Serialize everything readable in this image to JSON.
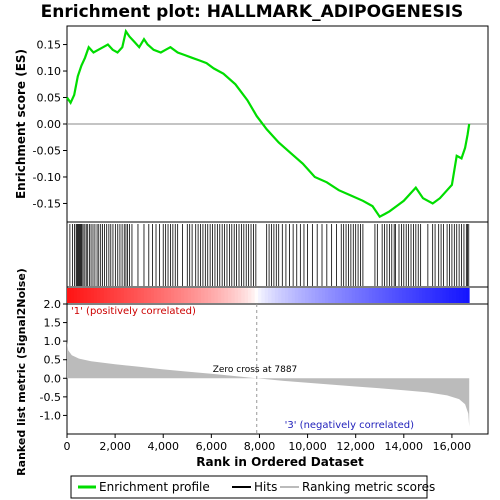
{
  "title": "Enrichment plot: HALLMARK_ADIPOGENESIS",
  "legend": {
    "enrichment_profile": "Enrichment profile",
    "hits": "Hits",
    "ranking_metric": "Ranking metric scores"
  },
  "colors": {
    "enrichment_line": "#00dd00",
    "hits": "#000000",
    "metric_fill": "#bbbbbb",
    "positive": "#ff0000",
    "negative": "#0000dd",
    "zero_line": "#999999"
  },
  "chart_data": [
    {
      "type": "line",
      "panel": "enrichment",
      "ylabel": "Enrichment score (ES)",
      "xlim": [
        0,
        17500
      ],
      "ylim": [
        -0.185,
        0.185
      ],
      "yticks": [
        -0.15,
        -0.1,
        -0.05,
        0.0,
        0.05,
        0.1,
        0.15
      ],
      "ytick_labels": [
        "-0.15",
        "-0.10",
        "-0.05",
        "0.00",
        "0.05",
        "0.10",
        "0.15"
      ],
      "grid": false,
      "x": [
        0,
        150,
        300,
        450,
        600,
        750,
        900,
        1100,
        1300,
        1500,
        1700,
        1900,
        2100,
        2300,
        2450,
        2600,
        2800,
        3000,
        3200,
        3350,
        3600,
        3900,
        4100,
        4300,
        4600,
        4900,
        5200,
        5500,
        5800,
        6100,
        6500,
        7000,
        7500,
        7887,
        8300,
        8800,
        9300,
        9800,
        10300,
        10800,
        11300,
        11800,
        12300,
        12700,
        13000,
        13200,
        13400,
        13700,
        14000,
        14300,
        14500,
        14800,
        15200,
        15500,
        15800,
        16000,
        16200,
        16400,
        16550,
        16650,
        16720
      ],
      "y": [
        0.05,
        0.04,
        0.055,
        0.09,
        0.11,
        0.125,
        0.145,
        0.135,
        0.14,
        0.145,
        0.15,
        0.14,
        0.135,
        0.145,
        0.175,
        0.165,
        0.155,
        0.145,
        0.16,
        0.15,
        0.14,
        0.135,
        0.14,
        0.145,
        0.135,
        0.13,
        0.125,
        0.12,
        0.115,
        0.105,
        0.095,
        0.075,
        0.045,
        0.015,
        -0.01,
        -0.035,
        -0.055,
        -0.075,
        -0.1,
        -0.11,
        -0.125,
        -0.135,
        -0.145,
        -0.155,
        -0.175,
        -0.17,
        -0.165,
        -0.155,
        -0.145,
        -0.13,
        -0.12,
        -0.14,
        -0.15,
        -0.14,
        -0.125,
        -0.115,
        -0.06,
        -0.065,
        -0.045,
        -0.02,
        0.0
      ]
    },
    {
      "type": "hits",
      "panel": "hits",
      "positions": [
        120,
        230,
        310,
        380,
        420,
        460,
        500,
        540,
        580,
        620,
        670,
        740,
        800,
        860,
        930,
        1000,
        1080,
        1160,
        1250,
        1320,
        1400,
        1480,
        1560,
        1650,
        1740,
        1820,
        1910,
        2010,
        2110,
        2200,
        2290,
        2380,
        2450,
        2520,
        2600,
        2700,
        2950,
        3200,
        3400,
        3550,
        3700,
        3850,
        4000,
        4100,
        4200,
        4300,
        4400,
        4500,
        4600,
        4800,
        5000,
        5100,
        5200,
        5350,
        5450,
        5550,
        5650,
        5750,
        5850,
        5950,
        6050,
        6150,
        6250,
        6350,
        6450,
        6550,
        6650,
        6750,
        6850,
        6950,
        7050,
        7150,
        7250,
        7350,
        7450,
        7550,
        7650,
        7750,
        7850,
        8300,
        8400,
        8500,
        8600,
        8700,
        8800,
        8950,
        9100,
        9250,
        9400,
        9550,
        9700,
        9850,
        10000,
        10200,
        10400,
        10600,
        10800,
        11000,
        11200,
        11400,
        11500,
        11600,
        11700,
        11800,
        11900,
        12000,
        12100,
        12200,
        12300,
        12800,
        12900,
        13100,
        13200,
        13300,
        13400,
        13500,
        13600,
        13650,
        13800,
        13900,
        14000,
        14100,
        14200,
        14300,
        14400,
        14500,
        14600,
        14700,
        15000,
        15200,
        15300,
        15450,
        15550,
        15650,
        15800,
        15900,
        16000,
        16100,
        16200,
        16300,
        16400,
        16500,
        16600,
        16650,
        16700
      ]
    },
    {
      "type": "area",
      "panel": "ranked_metric",
      "xlabel": "Rank in Ordered Dataset",
      "ylabel": "Ranked list metric (Signal2Noise)",
      "xlim": [
        0,
        17500
      ],
      "ylim": [
        -1.5,
        2.0
      ],
      "xticks": [
        0,
        2000,
        4000,
        6000,
        8000,
        10000,
        12000,
        14000,
        16000
      ],
      "xtick_labels": [
        "0",
        "2,000",
        "4,000",
        "6,000",
        "8,000",
        "10,000",
        "12,000",
        "14,000",
        "16,000"
      ],
      "yticks": [
        -1.0,
        -0.5,
        0.0,
        0.5,
        1.0,
        1.5,
        2.0
      ],
      "ytick_labels": [
        "-1.0",
        "-0.5",
        "0.0",
        "0.5",
        "1.0",
        "1.5",
        "2.0"
      ],
      "x": [
        0,
        50,
        200,
        500,
        1000,
        2000,
        3000,
        4000,
        5000,
        6000,
        7000,
        7887,
        9000,
        10000,
        11000,
        12000,
        13000,
        14000,
        15000,
        15800,
        16300,
        16550,
        16680,
        16720
      ],
      "y": [
        1.0,
        0.75,
        0.62,
        0.53,
        0.46,
        0.38,
        0.31,
        0.24,
        0.18,
        0.12,
        0.06,
        0.0,
        -0.07,
        -0.12,
        -0.17,
        -0.22,
        -0.27,
        -0.32,
        -0.38,
        -0.46,
        -0.56,
        -0.7,
        -0.95,
        -1.3
      ],
      "annotations": {
        "positive_label": "'1' (positively correlated)",
        "negative_label": "'3' (negatively correlated)",
        "zero_cross": "Zero cross at 7887"
      },
      "zero_cross": 7887
    }
  ]
}
